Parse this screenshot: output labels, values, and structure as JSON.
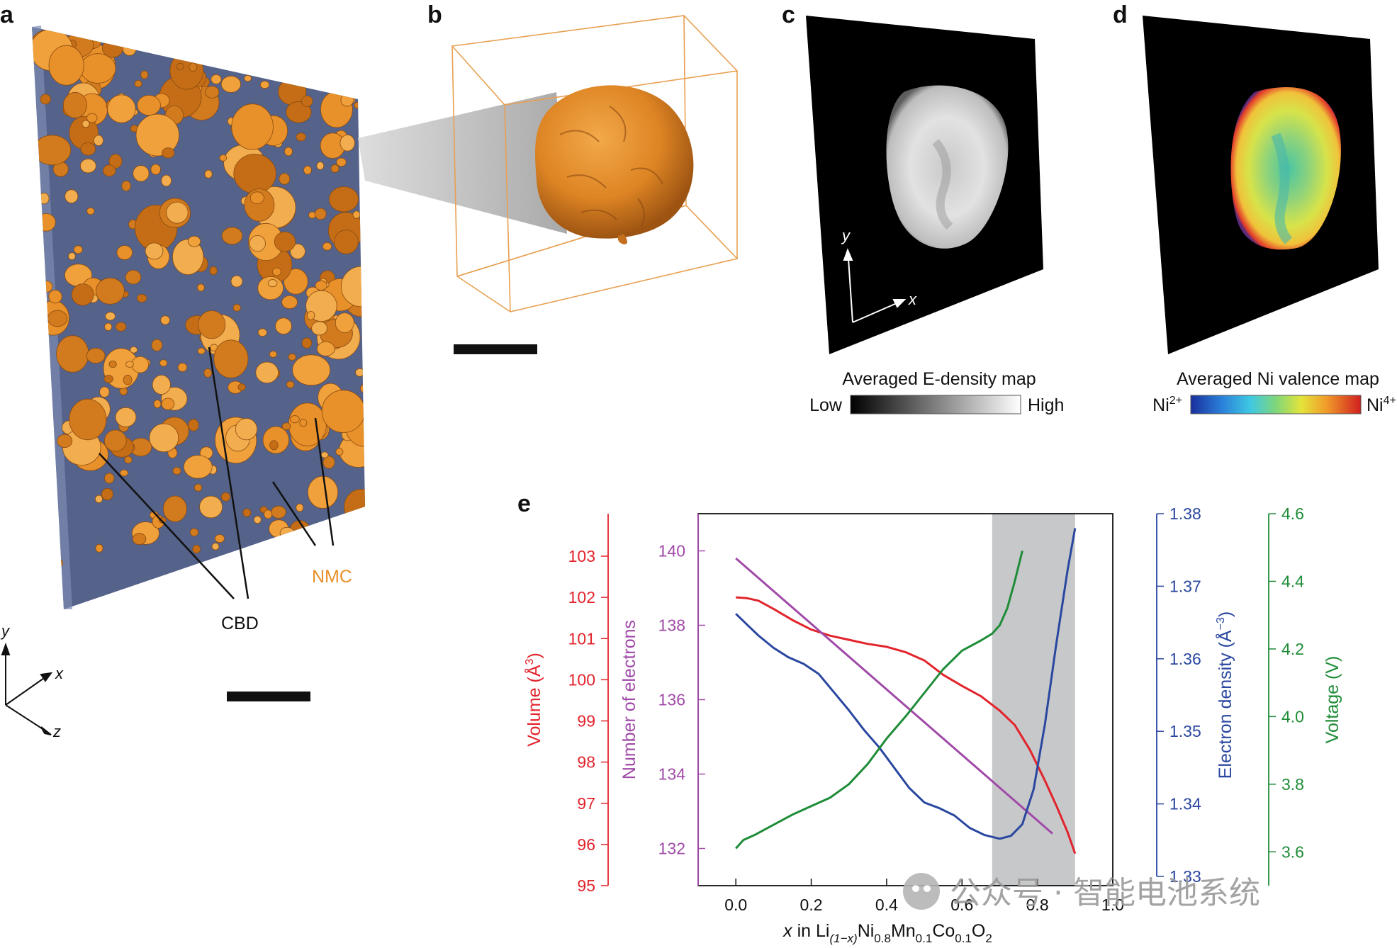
{
  "panels": {
    "a": {
      "label": "a",
      "nmc_label": "NMC",
      "cbd_label": "CBD",
      "axis_y": "y",
      "axis_x": "x",
      "axis_z": "z"
    },
    "b": {
      "label": "b"
    },
    "c": {
      "label": "c",
      "axis_y": "y",
      "axis_x": "x",
      "colorbar_title": "Averaged E-density map",
      "low": "Low",
      "high": "High"
    },
    "d": {
      "label": "d",
      "colorbar_title": "Averaged Ni valence map",
      "low_base": "Ni",
      "low_sup": "2+",
      "high_base": "Ni",
      "high_sup": "4+"
    },
    "e": {
      "label": "e"
    }
  },
  "colors": {
    "volume": "#e2242d",
    "electrons": "#a04aa8",
    "density": "#2a47a0",
    "voltage": "#1f8c38",
    "nmc": "#e8902a",
    "cbd": "#55628a",
    "shade": "#c7c8ca"
  },
  "watermark": "公众号 · 智能电池系统",
  "chart_data": {
    "type": "line",
    "xlabel": "x in Li(1−x)Ni0.8Mn0.1Co0.1O2",
    "xlabel_parts": {
      "x": "x",
      "in": " in Li",
      "sub1": "(1−x)",
      "ni": "Ni",
      "sub2": "0.8",
      "mn": "Mn",
      "sub3": "0.1",
      "co": "Co",
      "sub4": "0.1",
      "o": "O",
      "sub5": "2"
    },
    "xlim": [
      -0.1,
      1.0
    ],
    "xticks": [
      "0.0",
      "0.2",
      "0.4",
      "0.6",
      "0.8",
      "1.0"
    ],
    "shaded_region": [
      0.68,
      0.9
    ],
    "axes": [
      {
        "name": "Volume",
        "label": "Volume (Å3)",
        "label_base": "Volume (Å",
        "label_sup": "3",
        "label_end": ")",
        "ticks": [
          "95",
          "96",
          "97",
          "98",
          "99",
          "100",
          "101",
          "102",
          "103"
        ],
        "position": "left-outer"
      },
      {
        "name": "Number of electrons",
        "label": "Number of electrons",
        "ticks": [
          "132",
          "134",
          "136",
          "138",
          "140"
        ],
        "ylim": [
          131,
          141
        ],
        "position": "left-inner"
      },
      {
        "name": "Electron density",
        "label": "Electron density (Å−3)",
        "label_base": "Electron density (Å",
        "label_sup": "−3",
        "label_end": ")",
        "ticks": [
          "1.33",
          "1.34",
          "1.35",
          "1.36",
          "1.37",
          "1.38"
        ],
        "ylim": [
          1.33,
          1.38
        ],
        "position": "right-inner"
      },
      {
        "name": "Voltage",
        "label": "Voltage (V)",
        "ticks": [
          "3.6",
          "3.8",
          "4.0",
          "4.2",
          "4.4",
          "4.6"
        ],
        "ylim": [
          3.5,
          4.6
        ],
        "position": "right-outer"
      }
    ],
    "series": [
      {
        "name": "Volume",
        "axis": 0,
        "x": [
          0.0,
          0.03,
          0.06,
          0.1,
          0.15,
          0.2,
          0.25,
          0.3,
          0.35,
          0.4,
          0.45,
          0.5,
          0.55,
          0.6,
          0.65,
          0.7,
          0.74,
          0.78,
          0.82,
          0.85,
          0.88,
          0.9
        ],
        "y": [
          102.0,
          101.98,
          101.92,
          101.72,
          101.45,
          101.22,
          101.07,
          100.97,
          100.87,
          100.8,
          100.67,
          100.47,
          100.12,
          99.85,
          99.6,
          99.25,
          98.9,
          98.3,
          97.55,
          96.95,
          96.3,
          95.78
        ]
      },
      {
        "name": "Number of electrons",
        "axis": 1,
        "x": [
          0.0,
          0.84
        ],
        "y": [
          139.8,
          132.4
        ]
      },
      {
        "name": "Electron density",
        "axis": 2,
        "x": [
          0.0,
          0.03,
          0.06,
          0.1,
          0.14,
          0.18,
          0.22,
          0.26,
          0.3,
          0.34,
          0.38,
          0.42,
          0.46,
          0.5,
          0.54,
          0.58,
          0.62,
          0.66,
          0.7,
          0.73,
          0.76,
          0.79,
          0.82,
          0.85,
          0.88,
          0.9
        ],
        "y": [
          1.3662,
          1.3647,
          1.3632,
          1.3615,
          1.3602,
          1.3593,
          1.3579,
          1.3554,
          1.3529,
          1.3502,
          1.3478,
          1.345,
          1.3422,
          1.3402,
          1.3394,
          1.3384,
          1.3367,
          1.3357,
          1.3352,
          1.3356,
          1.3372,
          1.342,
          1.351,
          1.362,
          1.3722,
          1.378
        ]
      },
      {
        "name": "Voltage",
        "axis": 3,
        "x": [
          0.0,
          0.02,
          0.05,
          0.1,
          0.15,
          0.2,
          0.25,
          0.3,
          0.35,
          0.4,
          0.45,
          0.5,
          0.55,
          0.6,
          0.65,
          0.68,
          0.7,
          0.72,
          0.74,
          0.76
        ],
        "y": [
          3.61,
          3.635,
          3.65,
          3.68,
          3.71,
          3.735,
          3.76,
          3.8,
          3.86,
          3.935,
          4.0,
          4.07,
          4.14,
          4.195,
          4.225,
          4.245,
          4.27,
          4.32,
          4.4,
          4.49
        ]
      }
    ]
  }
}
